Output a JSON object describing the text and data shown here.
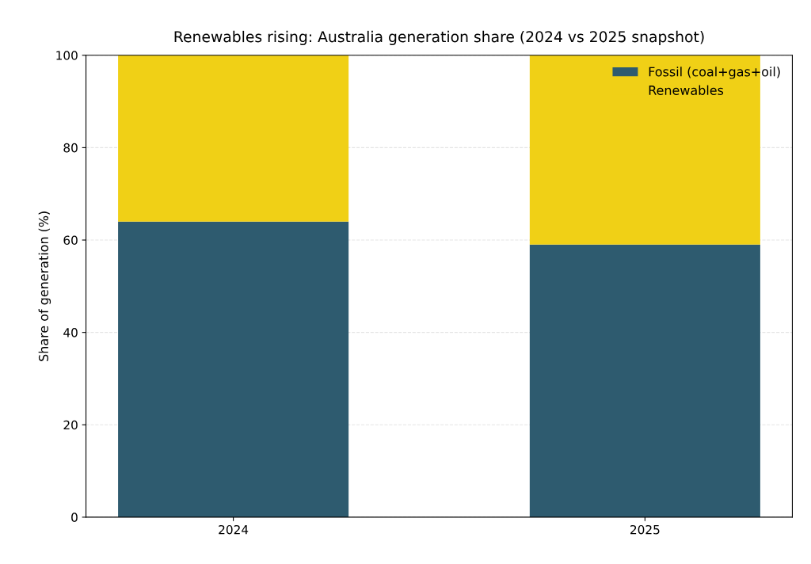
{
  "chart_data": {
    "type": "bar",
    "title": "Renewables rising: Australia generation share (2024 vs 2025 snapshot)",
    "ylabel": "Share of generation (%)",
    "categories": [
      "2024",
      "2025"
    ],
    "stacked": true,
    "series": [
      {
        "name": "Fossil (coal+gas+oil)",
        "color": "#2e5b6f",
        "values": [
          64,
          59
        ]
      },
      {
        "name": "Renewables",
        "color": "#f0d016",
        "values": [
          36,
          41
        ]
      }
    ],
    "ylim": [
      0,
      100
    ],
    "yticks": [
      0,
      20,
      40,
      60,
      80,
      100
    ],
    "grid": "y",
    "legend": "top right"
  }
}
